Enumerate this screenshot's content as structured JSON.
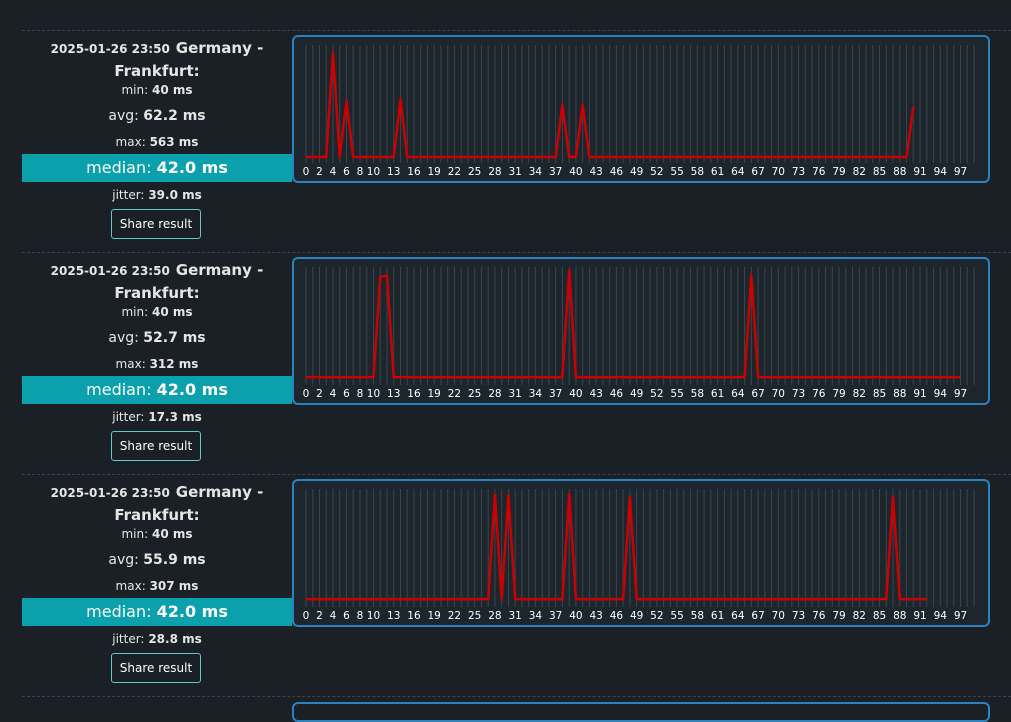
{
  "results": [
    {
      "timestamp": "2025-01-26 23:50",
      "location": "Germany - Frankfurt:",
      "min_label": "min:",
      "min": "40 ms",
      "avg_label": "avg:",
      "avg": "62.2 ms",
      "max_label": "max:",
      "max": "563 ms",
      "median_label": "median:",
      "median": "42.0 ms",
      "jitter_label": "jitter:",
      "jitter": "39.0 ms",
      "share_label": "Share result",
      "chart_data": {
        "type": "line",
        "x_ticks": [
          "0",
          "2",
          "4",
          "6",
          "8",
          "10",
          "13",
          "16",
          "19",
          "22",
          "25",
          "28",
          "31",
          "34",
          "37",
          "40",
          "43",
          "46",
          "49",
          "52",
          "55",
          "58",
          "61",
          "64",
          "67",
          "70",
          "73",
          "76",
          "79",
          "82",
          "85",
          "88",
          "91",
          "94",
          "97"
        ],
        "xlim": [
          0,
          99
        ],
        "ylim": [
          30,
          600
        ],
        "grid": true,
        "line_color": "#cc0000",
        "series": [
          {
            "values": [
              40,
              40,
              40,
              40,
              563,
              40,
              320,
              40,
              40,
              40,
              40,
              40,
              40,
              40,
              330,
              40,
              40,
              40,
              40,
              40,
              40,
              40,
              40,
              40,
              40,
              40,
              40,
              40,
              40,
              40,
              40,
              40,
              40,
              40,
              40,
              40,
              40,
              40,
              300,
              40,
              40,
              300,
              40,
              40,
              40,
              40,
              40,
              40,
              40,
              40,
              40,
              40,
              40,
              40,
              40,
              40,
              40,
              40,
              40,
              40,
              40,
              40,
              40,
              40,
              40,
              40,
              40,
              40,
              40,
              40,
              40,
              40,
              40,
              40,
              40,
              40,
              40,
              40,
              40,
              40,
              40,
              40,
              40,
              40,
              40,
              40,
              40,
              40,
              40,
              40,
              290
            ]
          }
        ]
      }
    },
    {
      "timestamp": "2025-01-26 23:50",
      "location": "Germany - Frankfurt:",
      "min_label": "min:",
      "min": "40 ms",
      "avg_label": "avg:",
      "avg": "52.7 ms",
      "max_label": "max:",
      "max": "312 ms",
      "median_label": "median:",
      "median": "42.0 ms",
      "jitter_label": "jitter:",
      "jitter": "17.3 ms",
      "share_label": "Share result",
      "chart_data": {
        "type": "line",
        "x_ticks": [
          "0",
          "2",
          "4",
          "6",
          "8",
          "10",
          "13",
          "16",
          "19",
          "22",
          "25",
          "28",
          "31",
          "34",
          "37",
          "40",
          "43",
          "46",
          "49",
          "52",
          "55",
          "58",
          "61",
          "64",
          "67",
          "70",
          "73",
          "76",
          "79",
          "82",
          "85",
          "88",
          "91",
          "94",
          "97"
        ],
        "xlim": [
          0,
          99
        ],
        "ylim": [
          30,
          320
        ],
        "grid": true,
        "line_color": "#cc0000",
        "series": [
          {
            "values": [
              40,
              40,
              40,
              40,
              40,
              40,
              40,
              40,
              40,
              40,
              40,
              295,
              298,
              40,
              40,
              40,
              40,
              40,
              40,
              40,
              40,
              40,
              40,
              40,
              40,
              40,
              40,
              40,
              40,
              40,
              40,
              40,
              40,
              40,
              40,
              40,
              40,
              40,
              40,
              312,
              40,
              40,
              40,
              40,
              40,
              40,
              40,
              40,
              40,
              40,
              40,
              40,
              40,
              40,
              40,
              40,
              40,
              40,
              40,
              40,
              40,
              40,
              40,
              40,
              40,
              40,
              300,
              40,
              40,
              40,
              40,
              40,
              40,
              40,
              40,
              40,
              40,
              40,
              40,
              40,
              40,
              40,
              40,
              40,
              40,
              40,
              40,
              40,
              40,
              40,
              40,
              40,
              40,
              40,
              40,
              40,
              40,
              40
            ]
          }
        ]
      }
    },
    {
      "timestamp": "2025-01-26 23:50",
      "location": "Germany - Frankfurt:",
      "min_label": "min:",
      "min": "40 ms",
      "avg_label": "avg:",
      "avg": "55.9 ms",
      "max_label": "max:",
      "max": "307 ms",
      "median_label": "median:",
      "median": "42.0 ms",
      "jitter_label": "jitter:",
      "jitter": "28.8 ms",
      "share_label": "Share result",
      "chart_data": {
        "type": "line",
        "x_ticks": [
          "0",
          "2",
          "4",
          "6",
          "8",
          "10",
          "13",
          "16",
          "19",
          "22",
          "25",
          "28",
          "31",
          "34",
          "37",
          "40",
          "43",
          "46",
          "49",
          "52",
          "55",
          "58",
          "61",
          "64",
          "67",
          "70",
          "73",
          "76",
          "79",
          "82",
          "85",
          "88",
          "91",
          "94",
          "97"
        ],
        "xlim": [
          0,
          99
        ],
        "ylim": [
          30,
          320
        ],
        "grid": true,
        "line_color": "#cc0000",
        "series": [
          {
            "values": [
              40,
              40,
              40,
              40,
              40,
              40,
              40,
              40,
              40,
              40,
              40,
              40,
              40,
              40,
              40,
              40,
              40,
              40,
              40,
              40,
              40,
              40,
              40,
              40,
              40,
              40,
              40,
              40,
              305,
              40,
              305,
              40,
              40,
              40,
              40,
              40,
              40,
              40,
              40,
              307,
              40,
              40,
              40,
              40,
              40,
              40,
              40,
              40,
              300,
              40,
              40,
              40,
              40,
              40,
              40,
              40,
              40,
              40,
              40,
              40,
              40,
              40,
              40,
              40,
              40,
              40,
              40,
              40,
              40,
              40,
              40,
              40,
              40,
              40,
              40,
              40,
              40,
              40,
              40,
              40,
              40,
              40,
              40,
              40,
              40,
              40,
              40,
              300,
              40,
              40,
              40,
              40,
              40
            ]
          }
        ]
      }
    }
  ]
}
